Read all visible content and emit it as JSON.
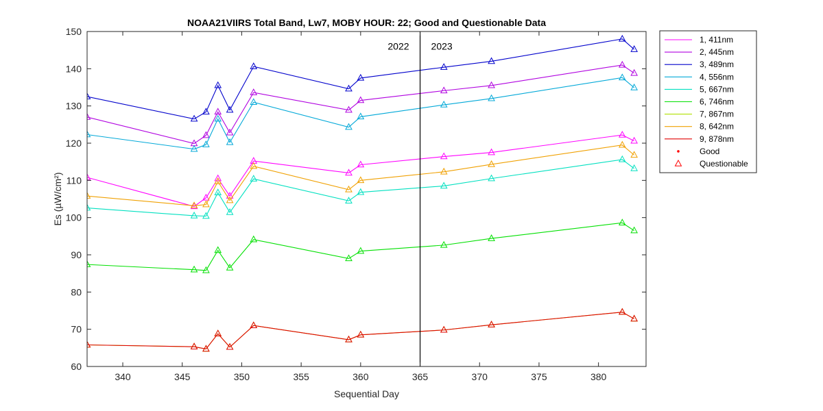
{
  "chart_data": {
    "type": "line",
    "title": "NOAA21VIIRS Total Band,  Lw7, MOBY HOUR: 22;  Good and Questionable Data",
    "xlabel": "Sequential Day",
    "ylabel": "Es (µW/cm²)",
    "xlim": [
      337,
      384
    ],
    "ylim": [
      60,
      150
    ],
    "xticks": [
      340,
      345,
      350,
      355,
      360,
      365,
      370,
      375,
      380
    ],
    "yticks": [
      60,
      70,
      80,
      90,
      100,
      110,
      120,
      130,
      140,
      150
    ],
    "grid": false,
    "legend_position": "outside-right-top",
    "x": [
      337,
      346,
      347,
      348,
      349,
      351,
      359,
      360,
      367,
      371,
      382,
      383
    ],
    "series": [
      {
        "name": "1, 411nm",
        "color": "#FF00FF",
        "values": [
          110.8,
          103.0,
          105.3,
          110.5,
          105.8,
          115.2,
          112.0,
          114.2,
          116.4,
          117.5,
          122.2,
          120.6
        ]
      },
      {
        "name": "2, 445nm",
        "color": "#B000E0",
        "values": [
          127.0,
          119.9,
          122.1,
          128.4,
          122.8,
          133.6,
          128.9,
          131.5,
          134.1,
          135.5,
          141.0,
          138.8
        ]
      },
      {
        "name": "3, 489nm",
        "color": "#0000CC",
        "values": [
          132.5,
          126.5,
          128.4,
          135.5,
          128.9,
          140.6,
          134.6,
          137.5,
          140.4,
          142.0,
          148.0,
          145.2
        ]
      },
      {
        "name": "4, 556nm",
        "color": "#00A8D8",
        "values": [
          122.3,
          118.4,
          119.6,
          126.5,
          120.2,
          131.0,
          124.3,
          127.1,
          130.3,
          132.0,
          137.6,
          134.9
        ]
      },
      {
        "name": "5, 667nm",
        "color": "#00E0C0",
        "values": [
          102.6,
          100.5,
          100.4,
          106.7,
          101.4,
          110.4,
          104.5,
          106.8,
          108.5,
          110.5,
          115.6,
          113.2
        ]
      },
      {
        "name": "6, 746nm",
        "color": "#00E000",
        "values": [
          87.4,
          86.0,
          85.8,
          91.2,
          86.5,
          94.1,
          89.0,
          91.0,
          92.6,
          94.4,
          98.6,
          96.5
        ]
      },
      {
        "name": "7, 867nm",
        "color": "#B0E000",
        "values": [
          65.8,
          65.3,
          64.7,
          68.8,
          65.2,
          71.0,
          67.2,
          68.5,
          69.8,
          71.2,
          74.6,
          72.8
        ]
      },
      {
        "name": "8, 642nm",
        "color": "#F0A000",
        "values": [
          105.8,
          103.2,
          103.5,
          109.7,
          104.6,
          113.8,
          107.5,
          110.0,
          112.3,
          114.3,
          119.5,
          116.8
        ]
      },
      {
        "name": "9, 878nm",
        "color": "#E00000",
        "values": [
          65.8,
          65.3,
          64.7,
          68.8,
          65.2,
          71.0,
          67.2,
          68.5,
          69.8,
          71.2,
          74.6,
          72.8
        ]
      }
    ],
    "vertical_line_x": 365,
    "annotations": [
      {
        "text": "2022",
        "x": 364,
        "y": 146
      },
      {
        "text": "2023",
        "x": 366,
        "y": 146
      }
    ],
    "marker_legend": [
      {
        "label": "Good",
        "marker": "dot",
        "color": "#FF0000"
      },
      {
        "label": "Questionable",
        "marker": "triangle",
        "color": "#FF0000"
      }
    ]
  }
}
